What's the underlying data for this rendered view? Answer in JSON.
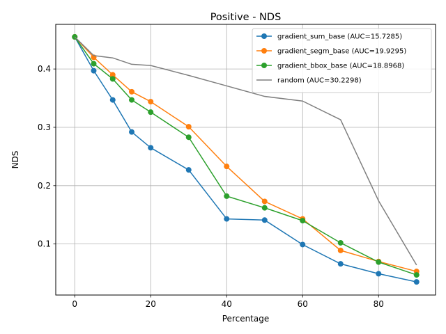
{
  "chart_data": {
    "type": "line",
    "title": "Positive - NDS",
    "xlabel": "Percentage",
    "ylabel": "NDS",
    "xlim": [
      -5,
      95
    ],
    "ylim": [
      0.0125,
      0.4765
    ],
    "xticks": [
      0,
      20,
      40,
      60,
      80
    ],
    "yticks": [
      0.1,
      0.2,
      0.3,
      0.4
    ],
    "xtick_labels": [
      "0",
      "20",
      "40",
      "60",
      "80"
    ],
    "ytick_labels": [
      "0.1",
      "0.2",
      "0.3",
      "0.4"
    ],
    "grid": true,
    "legend_position": "top-right",
    "x": [
      0,
      5,
      10,
      15,
      20,
      30,
      40,
      50,
      60,
      70,
      80,
      90
    ],
    "series": [
      {
        "name": "gradient_sum_base (AUC=15.7285)",
        "color": "#1f77b4",
        "marker": true,
        "values": [
          0.455,
          0.397,
          0.347,
          0.292,
          0.265,
          0.227,
          0.143,
          0.141,
          0.099,
          0.066,
          0.049,
          0.035
        ]
      },
      {
        "name": "gradient_segm_base (AUC=19.9295)",
        "color": "#ff7f0e",
        "marker": true,
        "values": [
          0.455,
          0.42,
          0.39,
          0.361,
          0.344,
          0.301,
          0.233,
          0.173,
          0.143,
          0.089,
          0.07,
          0.053
        ]
      },
      {
        "name": "gradient_bbox_base (AUC=18.8968)",
        "color": "#2ca02c",
        "marker": true,
        "values": [
          0.455,
          0.409,
          0.383,
          0.347,
          0.326,
          0.283,
          0.182,
          0.162,
          0.14,
          0.102,
          0.069,
          0.047
        ]
      },
      {
        "name": "random (AUC=30.2298)",
        "color": "#7f7f7f",
        "marker": false,
        "values": [
          0.455,
          0.423,
          0.419,
          0.408,
          0.406,
          0.389,
          0.371,
          0.353,
          0.345,
          0.313,
          0.174,
          0.064
        ]
      }
    ]
  }
}
